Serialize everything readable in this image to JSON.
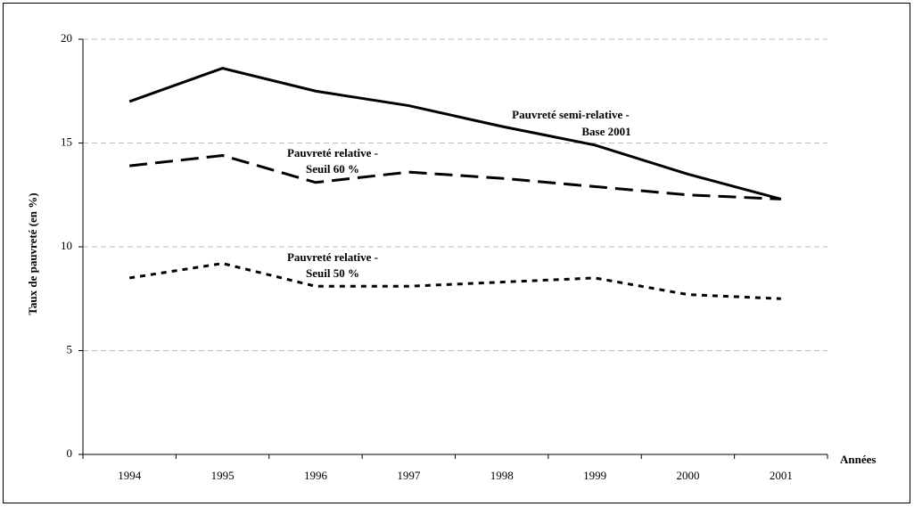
{
  "chart_data": {
    "type": "line",
    "y_label": "Taux de pauvreté (en %)",
    "x_label": "Années",
    "categories": [
      "1994",
      "1995",
      "1996",
      "1997",
      "1998",
      "1999",
      "2000",
      "2001"
    ],
    "ylim": [
      0,
      20
    ],
    "yticks": [
      0,
      5,
      10,
      15,
      20
    ],
    "grid": true,
    "series": [
      {
        "label": [
          "Pauvreté semi-relative -",
          "Base 2001"
        ],
        "color": "#000000",
        "dash": "solid",
        "values": [
          17.0,
          18.6,
          17.5,
          16.8,
          15.8,
          14.9,
          13.5,
          12.3
        ]
      },
      {
        "label": [
          "Pauvreté relative -",
          "Seuil 60 %"
        ],
        "color": "#000000",
        "dash": "dashed",
        "values": [
          13.9,
          14.4,
          13.1,
          13.6,
          13.3,
          12.9,
          12.5,
          12.3
        ]
      },
      {
        "label": [
          "Pauvreté relative -",
          "Seuil 50 %"
        ],
        "color": "#000000",
        "dash": "dotted",
        "values": [
          8.5,
          9.2,
          8.1,
          8.1,
          8.3,
          8.5,
          7.7,
          7.5
        ]
      }
    ]
  }
}
